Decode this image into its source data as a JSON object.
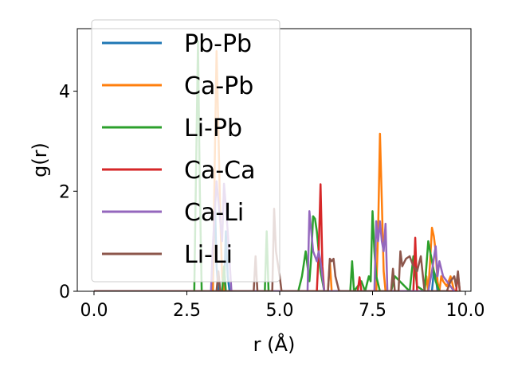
{
  "chart_data": {
    "type": "line",
    "title": "",
    "xlabel": "r (Å)",
    "ylabel": "g(r)",
    "xlim": [
      -0.45,
      10.15
    ],
    "ylim": [
      0,
      5.25
    ],
    "xticks": [
      0.0,
      2.5,
      5.0,
      7.5,
      10.0
    ],
    "xtick_labels": [
      "0.0",
      "2.5",
      "5.0",
      "7.5",
      "10.0"
    ],
    "yticks": [
      0,
      2,
      4
    ],
    "ytick_labels": [
      "0",
      "2",
      "4"
    ],
    "grid": false,
    "legend": "upper-left",
    "series": [
      {
        "name": "Pb-Pb",
        "color": "#1f77b4",
        "x": [
          0,
          3.2,
          3.25,
          3.3,
          3.35,
          3.5,
          3.55,
          3.6,
          3.65,
          9.1,
          9.15,
          9.2,
          9.25,
          9.8
        ],
        "y": [
          0,
          0,
          2.0,
          0.5,
          0,
          0,
          1.2,
          0.3,
          0,
          0,
          0.4,
          0.3,
          0,
          0
        ]
      },
      {
        "name": "Ca-Pb",
        "color": "#ff7f0e",
        "x": [
          0,
          3.2,
          3.25,
          3.3,
          3.35,
          3.4,
          3.45,
          3.5,
          6.3,
          6.35,
          6.4,
          7.6,
          7.65,
          7.7,
          7.75,
          7.8,
          7.85,
          8.9,
          8.95,
          9.0,
          9.05,
          9.1,
          9.15,
          9.2,
          9.25,
          9.3,
          9.35,
          9.4,
          9.5,
          9.6,
          9.7,
          9.8
        ],
        "y": [
          0,
          0,
          2.5,
          4.8,
          3.2,
          1.5,
          0.3,
          0,
          0,
          0.6,
          0,
          0,
          1.2,
          3.15,
          1.8,
          0.4,
          0,
          0,
          0.3,
          0,
          0.6,
          1.27,
          1.1,
          0.8,
          0.2,
          0,
          0.3,
          0.2,
          0.1,
          0.3,
          0,
          0
        ]
      },
      {
        "name": "Li-Pb",
        "color": "#2ca02c",
        "x": [
          0,
          2.7,
          2.75,
          2.8,
          2.85,
          2.9,
          3.45,
          3.5,
          3.55,
          4.6,
          4.65,
          4.7,
          5.5,
          5.6,
          5.7,
          5.8,
          5.85,
          5.9,
          5.95,
          6.0,
          6.1,
          6.2,
          6.3,
          6.9,
          6.95,
          7.0,
          7.1,
          7.2,
          7.3,
          7.4,
          7.45,
          7.5,
          7.55,
          7.6,
          7.7,
          8.0,
          8.1,
          8.5,
          8.6,
          8.7,
          8.9,
          9.0,
          9.1,
          9.2,
          9.3
        ],
        "y": [
          0,
          0,
          2.5,
          5.0,
          2.0,
          0,
          0,
          0.5,
          0,
          0,
          1.2,
          0,
          0,
          0.3,
          0.8,
          0.2,
          0.7,
          1.5,
          1.45,
          1.2,
          0.4,
          0,
          0,
          0,
          0.6,
          0,
          0.1,
          0.2,
          0,
          0.3,
          0.2,
          1.6,
          0.8,
          0.3,
          0,
          0,
          0.3,
          0,
          0.7,
          0.1,
          0,
          1.0,
          0.6,
          0.2,
          0
        ]
      },
      {
        "name": "Ca-Ca",
        "color": "#d62728",
        "x": [
          0,
          6.0,
          6.05,
          6.1,
          6.15,
          6.2,
          7.1,
          7.15,
          7.2,
          8.6,
          8.65,
          8.7,
          9.75,
          9.8,
          9.85
        ],
        "y": [
          0,
          0,
          0.8,
          2.14,
          0.5,
          0,
          0,
          0.28,
          0,
          0,
          1.07,
          0,
          0,
          0.35,
          0
        ]
      },
      {
        "name": "Ca-Li",
        "color": "#9467bd",
        "x": [
          0,
          3.15,
          3.2,
          3.3,
          3.4,
          3.45,
          3.5,
          3.55,
          3.6,
          3.7,
          5.75,
          5.8,
          5.85,
          5.9,
          5.95,
          6.0,
          6.05,
          6.1,
          6.15,
          6.2,
          7.55,
          7.6,
          7.65,
          7.7,
          7.75,
          7.8,
          7.85,
          7.9,
          9.0,
          9.1,
          9.2,
          9.25,
          9.3,
          9.4,
          9.5,
          9.6,
          9.7
        ],
        "y": [
          0,
          0,
          0.9,
          2.2,
          1.4,
          1.0,
          2.15,
          1.7,
          1.2,
          0,
          0,
          1.6,
          1.2,
          0.8,
          0.7,
          0.6,
          0.8,
          0.6,
          0.3,
          0,
          0,
          1.4,
          1.0,
          1.4,
          1.0,
          0.8,
          1.35,
          0,
          0,
          0.4,
          0.9,
          0.3,
          0.6,
          0.3,
          0.2,
          0.1,
          0
        ]
      },
      {
        "name": "Li-Li",
        "color": "#8c564b",
        "x": [
          0,
          3.3,
          3.35,
          3.4,
          4.3,
          4.35,
          4.4,
          4.8,
          4.85,
          4.9,
          5.0,
          5.05,
          6.3,
          6.35,
          6.4,
          6.45,
          6.5,
          6.6,
          8.0,
          8.05,
          8.1,
          8.2,
          8.25,
          8.3,
          8.4,
          8.5,
          8.6,
          8.7,
          8.8,
          8.9,
          9.5,
          9.6,
          9.7,
          9.75,
          9.8,
          9.85
        ],
        "y": [
          0,
          0,
          0.4,
          0,
          0,
          0.7,
          0,
          0,
          1.65,
          0.8,
          0.3,
          0,
          0,
          0.65,
          0.6,
          0.65,
          0.3,
          0,
          0,
          0.45,
          0,
          0,
          0.8,
          0.5,
          0.65,
          0.7,
          0.5,
          0.4,
          0.7,
          0,
          0,
          0.2,
          0.3,
          0.1,
          0.4,
          0
        ]
      }
    ]
  }
}
